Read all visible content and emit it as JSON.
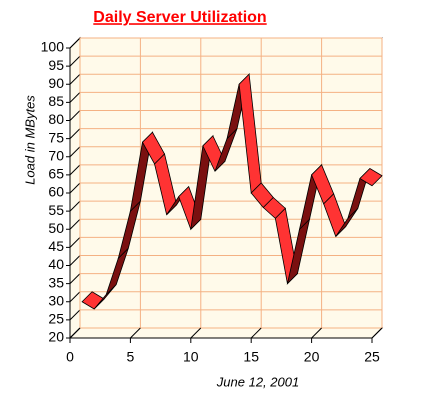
{
  "chart_data": {
    "type": "ribbon-line",
    "title": "Daily Server Utilization",
    "y_label": "Load in MBytes",
    "x_label": "June 12, 2001",
    "x": [
      1,
      2,
      3,
      4,
      5,
      6,
      7,
      8,
      9,
      10,
      11,
      12,
      13,
      14,
      15,
      16,
      17,
      18,
      19,
      20,
      21,
      22,
      23,
      24,
      25
    ],
    "series": [
      {
        "color": "#ff3333",
        "values": [
          30,
          28,
          32,
          42,
          55,
          74,
          68,
          54,
          59,
          50,
          73,
          66,
          75,
          90,
          60,
          56,
          53,
          35,
          50,
          65,
          57,
          48,
          53,
          64,
          62
        ]
      }
    ],
    "xlim": [
      0,
      25
    ],
    "xticks": [
      0,
      5,
      10,
      15,
      20,
      25
    ],
    "ylim": [
      20,
      100
    ],
    "yticks": [
      20,
      25,
      30,
      35,
      40,
      45,
      50,
      55,
      60,
      65,
      70,
      75,
      80,
      85,
      90,
      95,
      100
    ],
    "grid": true
  }
}
